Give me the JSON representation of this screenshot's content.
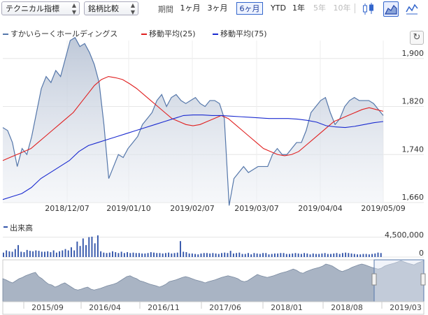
{
  "toolbar": {
    "indicator_select": "テクニカル指標",
    "compare_select": "銘柄比較",
    "period_label": "期間",
    "ranges": [
      {
        "label": "1ヶ月",
        "state": "normal"
      },
      {
        "label": "3ヶ月",
        "state": "normal"
      },
      {
        "label": "6ヶ月",
        "state": "active"
      },
      {
        "label": "YTD",
        "state": "normal"
      },
      {
        "label": "1年",
        "state": "normal"
      },
      {
        "label": "5年",
        "state": "disabled"
      },
      {
        "label": "10年",
        "state": "disabled"
      }
    ],
    "chart_type_icons": [
      "candlestick-icon",
      "area-chart-icon",
      "line-chart-icon"
    ],
    "active_chart_type": "area-chart-icon"
  },
  "refresh_icon": "refresh-icon",
  "colors": {
    "price": "#5577aa",
    "ma25": "#e02020",
    "ma75": "#1a2ad0",
    "volume": "#3355aa"
  },
  "chart_data": [
    {
      "type": "area",
      "legend": [
        {
          "name": "すかいらーくホールディングス",
          "color": "#5577aa"
        },
        {
          "name": "移動平均(25)",
          "color": "#e02020"
        },
        {
          "name": "移動平均(75)",
          "color": "#1a2ad0"
        }
      ],
      "x_tick_labels": [
        "2018/12/07",
        "2019/01/10",
        "2019/02/07",
        "2019/03/07",
        "2019/04/04",
        "2019/05/09"
      ],
      "y_tick_labels": [
        "1,900",
        "1,820",
        "1,740",
        "1,660"
      ],
      "ylim": [
        1660,
        1930
      ],
      "grid": true,
      "legend_position": "top-left",
      "series": [
        {
          "name": "すかいらーくホールディングス",
          "values": [
            1785,
            1780,
            1760,
            1720,
            1750,
            1740,
            1770,
            1810,
            1850,
            1870,
            1860,
            1880,
            1870,
            1900,
            1930,
            1935,
            1920,
            1925,
            1910,
            1890,
            1860,
            1790,
            1700,
            1720,
            1740,
            1735,
            1750,
            1760,
            1770,
            1790,
            1800,
            1810,
            1830,
            1840,
            1820,
            1835,
            1840,
            1830,
            1825,
            1830,
            1835,
            1825,
            1820,
            1830,
            1830,
            1825,
            1800,
            1655,
            1700,
            1710,
            1720,
            1710,
            1715,
            1720,
            1720,
            1720,
            1740,
            1750,
            1740,
            1740,
            1750,
            1760,
            1760,
            1780,
            1810,
            1820,
            1830,
            1835,
            1810,
            1790,
            1800,
            1820,
            1830,
            1835,
            1830,
            1830,
            1830,
            1825,
            1815,
            1805
          ]
        },
        {
          "name": "移動平均(25)",
          "values": [
            1730,
            1735,
            1740,
            1745,
            1750,
            1760,
            1770,
            1780,
            1790,
            1800,
            1810,
            1825,
            1840,
            1855,
            1865,
            1870,
            1868,
            1865,
            1858,
            1850,
            1840,
            1830,
            1820,
            1810,
            1800,
            1795,
            1790,
            1788,
            1790,
            1795,
            1800,
            1805,
            1800,
            1790,
            1780,
            1770,
            1760,
            1750,
            1745,
            1740,
            1738,
            1740,
            1745,
            1755,
            1765,
            1775,
            1785,
            1795,
            1800,
            1805,
            1810,
            1815,
            1818,
            1815,
            1812
          ]
        },
        {
          "name": "移動平均(75)",
          "values": [
            1665,
            1670,
            1675,
            1685,
            1700,
            1710,
            1720,
            1730,
            1745,
            1755,
            1760,
            1765,
            1770,
            1775,
            1780,
            1785,
            1790,
            1795,
            1800,
            1805,
            1806,
            1806,
            1805,
            1805,
            1804,
            1803,
            1802,
            1801,
            1800,
            1800,
            1800,
            1799,
            1797,
            1794,
            1788,
            1786,
            1785,
            1787,
            1790,
            1793,
            1795
          ]
        }
      ]
    },
    {
      "type": "bar",
      "legend": [
        {
          "name": "出来高",
          "color": "#3355aa"
        }
      ],
      "y_tick_labels": [
        "4,500,000",
        "0"
      ],
      "ylim": [
        0,
        6000000
      ],
      "series": [
        {
          "name": "出来高",
          "values": [
            1000000,
            1500000,
            1300000,
            1200000,
            1800000,
            2700000,
            1200000,
            1100000,
            1600000,
            1400000,
            1300000,
            1500000,
            1400000,
            1200000,
            1200000,
            1300000,
            1100000,
            1500000,
            1000000,
            1300000,
            1500000,
            1800000,
            1500000,
            2200000,
            1500000,
            3500000,
            2500000,
            4200000,
            2700000,
            4500000,
            4600000,
            3100000,
            4900000,
            1300000,
            1000000,
            900000,
            1000000,
            1300000,
            1100000,
            900000,
            1200000,
            900000,
            1100000,
            900000,
            1000000,
            900000,
            900000,
            800000,
            800000,
            900000,
            1100000,
            1000000,
            900000,
            900000,
            800000,
            900000,
            1000000,
            800000,
            900000,
            1000000,
            3600000,
            1200000,
            1100000,
            800000,
            800000,
            700000,
            600000,
            800000,
            900000,
            900000,
            800000,
            900000,
            800000,
            700000,
            900000,
            1000000,
            900000,
            1400000,
            800000,
            900000,
            1000000,
            700000,
            700000,
            900000,
            600000,
            900000,
            800000,
            700000,
            900000,
            900000,
            600000,
            700000,
            800000,
            800000,
            900000,
            900000,
            700000,
            700000,
            800000,
            900000,
            800000,
            700000,
            900000,
            800000,
            600000,
            800000,
            700000,
            700000,
            800000,
            900000,
            700000,
            700000,
            800000,
            900000,
            700000,
            900000,
            1000000,
            900000,
            800000,
            700000,
            600000,
            600000,
            700000,
            700000,
            600000,
            700000,
            800000,
            1000000,
            900000
          ]
        }
      ]
    },
    {
      "type": "area",
      "x_tick_labels": [
        "2015/09",
        "2016/04",
        "2016/11",
        "2017/06",
        "2018/01",
        "2018/08",
        "2019/03"
      ],
      "series": [
        {
          "name": "navigator",
          "values": [
            0.55,
            0.52,
            0.48,
            0.45,
            0.5,
            0.55,
            0.58,
            0.62,
            0.65,
            0.68,
            0.7,
            0.6,
            0.55,
            0.48,
            0.42,
            0.4,
            0.35,
            0.38,
            0.42,
            0.45,
            0.4,
            0.35,
            0.3,
            0.28,
            0.3,
            0.33,
            0.35,
            0.3,
            0.28,
            0.3,
            0.32,
            0.35,
            0.38,
            0.4,
            0.42,
            0.45,
            0.5,
            0.55,
            0.6,
            0.62,
            0.58,
            0.55,
            0.5,
            0.48,
            0.45,
            0.42,
            0.4,
            0.38,
            0.35,
            0.38,
            0.42,
            0.48,
            0.5,
            0.52,
            0.55,
            0.58,
            0.6,
            0.58,
            0.55,
            0.52,
            0.5,
            0.48,
            0.45,
            0.48,
            0.5,
            0.52,
            0.55,
            0.58,
            0.6,
            0.62,
            0.6,
            0.58,
            0.55,
            0.5,
            0.48,
            0.5,
            0.55,
            0.6,
            0.65,
            0.62,
            0.6,
            0.58,
            0.6,
            0.62,
            0.65,
            0.68,
            0.7,
            0.72,
            0.75,
            0.78,
            0.75,
            0.7,
            0.68,
            0.72,
            0.75,
            0.78,
            0.8,
            0.82,
            0.85,
            0.9,
            0.88,
            0.85,
            0.8,
            0.75,
            0.72,
            0.75,
            0.78,
            0.82,
            0.85,
            0.88,
            0.9,
            0.88,
            0.85,
            0.82,
            0.8,
            0.78,
            0.8,
            0.85,
            0.88,
            0.9,
            0.92,
            0.95,
            0.98,
            0.95,
            0.92,
            0.9,
            0.88,
            0.92,
            0.95,
            0.98
          ]
        }
      ]
    }
  ]
}
